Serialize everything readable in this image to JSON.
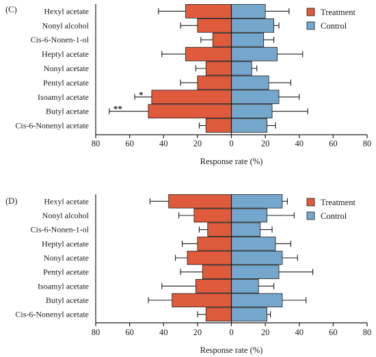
{
  "chart_data": [
    {
      "type": "bar",
      "orientation": "horizontal-diverging",
      "panel_label": "(C)",
      "xlabel": "Response rate  (%)",
      "xlim": [
        -80,
        80
      ],
      "xticks": [
        -80,
        -60,
        -40,
        -20,
        0,
        20,
        40,
        60,
        80
      ],
      "xtick_labels": [
        "80",
        "60",
        "40",
        "20",
        "0",
        "20",
        "40",
        "60",
        "80"
      ],
      "legend_position": "top-right",
      "categories": [
        "Hexyl acetate",
        "Nonyl alcohol",
        "Cis-6-Nonen-1-ol",
        "Heptyl acetate",
        "Nonyl acetate",
        "Pentyl acetate",
        "Isoamyl acetate",
        "Butyl acetate",
        "Cis-6-Nonenyl acetate"
      ],
      "series": [
        {
          "name": "Treatment",
          "color": "#e05a3c",
          "values": [
            27,
            20,
            11,
            27,
            15,
            20,
            47,
            49,
            15
          ],
          "errors": [
            16,
            10,
            7,
            14,
            6,
            10,
            10,
            23,
            4
          ]
        },
        {
          "name": "Control",
          "color": "#75a7cd",
          "values": [
            20,
            25,
            19,
            27,
            12,
            22,
            28,
            24,
            21
          ],
          "errors": [
            14,
            3,
            6,
            15,
            3,
            13,
            12,
            21,
            5
          ]
        }
      ],
      "annotations": [
        {
          "category": "Isoamyl acetate",
          "series": "Treatment",
          "text": "*"
        },
        {
          "category": "Butyl acetate",
          "series": "Treatment",
          "text": "**"
        }
      ]
    },
    {
      "type": "bar",
      "orientation": "horizontal-diverging",
      "panel_label": "(D)",
      "xlabel": "Response rate  (%)",
      "xlim": [
        -80,
        80
      ],
      "xticks": [
        -80,
        -60,
        -40,
        -20,
        0,
        20,
        40,
        60,
        80
      ],
      "xtick_labels": [
        "80",
        "60",
        "40",
        "20",
        "0",
        "20",
        "40",
        "60",
        "80"
      ],
      "legend_position": "top-right",
      "categories": [
        "Hexyl acetate",
        "Nonyl alcohol",
        "Cis-6-Nonen-1-ol",
        "Heptyl acetate",
        "Nonyl acetate",
        "Pentyl acetate",
        "Isoamyl acetate",
        "Butyl acetate",
        "Cis-6-Nonenyl acetate"
      ],
      "series": [
        {
          "name": "Treatment",
          "color": "#e05a3c",
          "values": [
            37,
            22,
            14,
            20,
            26,
            17,
            21,
            35,
            15
          ],
          "errors": [
            11,
            9,
            5,
            9,
            7,
            13,
            20,
            14,
            5
          ]
        },
        {
          "name": "Control",
          "color": "#75a7cd",
          "values": [
            30,
            21,
            17,
            26,
            30,
            28,
            16,
            30,
            21
          ],
          "errors": [
            3,
            16,
            7,
            9,
            9,
            20,
            9,
            14,
            2
          ]
        }
      ],
      "annotations": []
    }
  ]
}
